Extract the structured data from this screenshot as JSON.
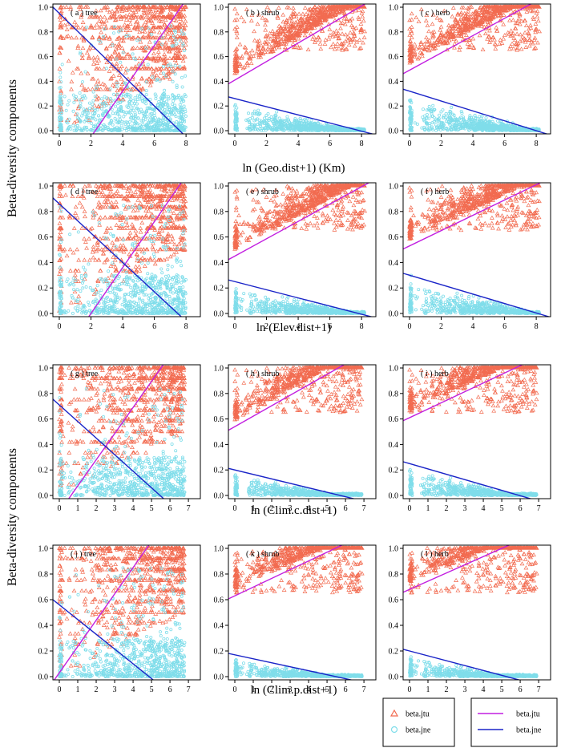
{
  "figure": {
    "ylabel_upper": "Beta-diversity components",
    "ylabel_lower": "Beta-diversity components",
    "colors": {
      "jtu": "#F26B50",
      "jne": "#7FDDEA",
      "jtu_line": "#C21FE0",
      "jne_line": "#1A24C8"
    }
  },
  "legend": {
    "points": [
      {
        "label": "beta.jtu",
        "marker": "triangle",
        "color": "#F26B50"
      },
      {
        "label": "beta.jne",
        "marker": "circle",
        "color": "#7FDDEA"
      }
    ],
    "lines": [
      {
        "label": "beta.jtu",
        "color": "#C21FE0"
      },
      {
        "label": "beta.jne",
        "color": "#1A24C8"
      }
    ]
  },
  "chart_data": [
    {
      "type": "scatter",
      "row": 0,
      "col": 0,
      "title": "( a ) tree",
      "xlabel": "ln (Geo.dist+1) (Km)",
      "xlim": [
        0,
        8.5
      ],
      "ylim": [
        0,
        1
      ],
      "xticks": [
        "0",
        "2",
        "4",
        "6",
        "8"
      ],
      "yticks": [
        "0.0",
        "0.2",
        "0.4",
        "0.6",
        "0.8",
        "1.0"
      ],
      "x_data_max": 8.0,
      "jtu_line": [
        -0.42,
        0.185
      ],
      "jne_line": [
        0.95,
        -0.125
      ]
    },
    {
      "type": "scatter",
      "row": 0,
      "col": 1,
      "title": "( b ) shrub",
      "xlabel": "",
      "xlim": [
        0,
        8.5
      ],
      "ylim": [
        0,
        1
      ],
      "xticks": [
        "0",
        "2",
        "4",
        "6",
        "8"
      ],
      "yticks": [
        "0.0",
        "0.2",
        "0.4",
        "0.6",
        "0.8",
        "1.0"
      ],
      "x_data_max": 8.2,
      "jtu_line": [
        0.41,
        0.075
      ],
      "jne_line": [
        0.26,
        -0.033
      ]
    },
    {
      "type": "scatter",
      "row": 0,
      "col": 2,
      "title": "( c ) herb",
      "xlabel": "",
      "xlim": [
        0,
        8.5
      ],
      "ylim": [
        0,
        1
      ],
      "xticks": [
        "0",
        "2",
        "4",
        "6",
        "8"
      ],
      "yticks": [
        "0.0",
        "0.2",
        "0.4",
        "0.6",
        "0.8",
        "1.0"
      ],
      "x_data_max": 8.2,
      "jtu_line": [
        0.49,
        0.07
      ],
      "jne_line": [
        0.32,
        -0.04
      ]
    },
    {
      "type": "scatter",
      "row": 1,
      "col": 0,
      "title": "( d ) tree",
      "xlabel": "ln (Elev.dist+1)",
      "xlim": [
        0,
        8.5
      ],
      "ylim": [
        0,
        1
      ],
      "xticks": [
        "0",
        "2",
        "4",
        "6",
        "8"
      ],
      "yticks": [
        "0.0",
        "0.2",
        "0.4",
        "0.6",
        "0.8",
        "1.0"
      ],
      "x_data_max": 8.0,
      "jtu_line": [
        -0.36,
        0.18
      ],
      "jne_line": [
        0.86,
        -0.115
      ]
    },
    {
      "type": "scatter",
      "row": 1,
      "col": 1,
      "title": "( e ) shrub",
      "xlabel": "",
      "xlim": [
        0,
        8.5
      ],
      "ylim": [
        0,
        1
      ],
      "xticks": [
        "0",
        "2",
        "4",
        "6",
        "8"
      ],
      "yticks": [
        "0.0",
        "0.2",
        "0.4",
        "0.6",
        "0.8",
        "1.0"
      ],
      "x_data_max": 8.2,
      "jtu_line": [
        0.45,
        0.068
      ],
      "jne_line": [
        0.25,
        -0.032
      ]
    },
    {
      "type": "scatter",
      "row": 1,
      "col": 2,
      "title": "( f ) herb",
      "xlabel": "",
      "xlim": [
        0,
        8.5
      ],
      "ylim": [
        0,
        1
      ],
      "xticks": [
        "0",
        "2",
        "4",
        "6",
        "8"
      ],
      "yticks": [
        "0.0",
        "0.2",
        "0.4",
        "0.6",
        "0.8",
        "1.0"
      ],
      "x_data_max": 8.2,
      "jtu_line": [
        0.53,
        0.06
      ],
      "jne_line": [
        0.3,
        -0.037
      ]
    },
    {
      "type": "scatter",
      "row": 2,
      "col": 0,
      "title": "( g ) tree",
      "xlabel": "ln (Clim.c.dist+1)",
      "xlim": [
        0,
        7.3
      ],
      "ylim": [
        0,
        1
      ],
      "xticks": [
        "0",
        "1",
        "2",
        "3",
        "4",
        "5",
        "6",
        "7"
      ],
      "yticks": [
        "0.0",
        "0.2",
        "0.4",
        "0.6",
        "0.8",
        "1.0"
      ],
      "x_data_max": 6.8,
      "jtu_line": [
        -0.13,
        0.205
      ],
      "jne_line": [
        0.71,
        -0.13
      ]
    },
    {
      "type": "scatter",
      "row": 2,
      "col": 1,
      "title": "( h ) shrub",
      "xlabel": "",
      "xlim": [
        0,
        7.3
      ],
      "ylim": [
        0,
        1
      ],
      "xticks": [
        "0",
        "1",
        "2",
        "3",
        "4",
        "5",
        "6",
        "7"
      ],
      "yticks": [
        "0.0",
        "0.2",
        "0.4",
        "0.6",
        "0.8",
        "1.0"
      ],
      "x_data_max": 6.9,
      "jtu_line": [
        0.54,
        0.082
      ],
      "jne_line": [
        0.2,
        -0.035
      ]
    },
    {
      "type": "scatter",
      "row": 2,
      "col": 2,
      "title": "( i ) herb",
      "xlabel": "",
      "xlim": [
        0,
        7.3
      ],
      "ylim": [
        0,
        1
      ],
      "xticks": [
        "0",
        "1",
        "2",
        "3",
        "4",
        "5",
        "6",
        "7"
      ],
      "yticks": [
        "0.0",
        "0.2",
        "0.4",
        "0.6",
        "0.8",
        "1.0"
      ],
      "x_data_max": 6.9,
      "jtu_line": [
        0.61,
        0.068
      ],
      "jne_line": [
        0.25,
        -0.042
      ]
    },
    {
      "type": "scatter",
      "row": 3,
      "col": 0,
      "title": "( j ) tree",
      "xlabel": "ln (Clim.p.dist+1)",
      "xlim": [
        0,
        7.3
      ],
      "ylim": [
        0,
        1
      ],
      "xticks": [
        "0",
        "1",
        "2",
        "3",
        "4",
        "5",
        "6",
        "7"
      ],
      "yticks": [
        "0.0",
        "0.2",
        "0.4",
        "0.6",
        "0.8",
        "1.0"
      ],
      "x_data_max": 6.8,
      "jtu_line": [
        0.03,
        0.205
      ],
      "jne_line": [
        0.56,
        -0.115
      ]
    },
    {
      "type": "scatter",
      "row": 3,
      "col": 1,
      "title": "( k ) shrub",
      "xlabel": "",
      "xlim": [
        0,
        7.3
      ],
      "ylim": [
        0,
        1
      ],
      "xticks": [
        "0",
        "1",
        "2",
        "3",
        "4",
        "5",
        "6",
        "7"
      ],
      "yticks": [
        "0.0",
        "0.2",
        "0.4",
        "0.6",
        "0.8",
        "1.0"
      ],
      "x_data_max": 6.9,
      "jtu_line": [
        0.63,
        0.068
      ],
      "jne_line": [
        0.17,
        -0.031
      ]
    },
    {
      "type": "scatter",
      "row": 3,
      "col": 2,
      "title": "( l ) herb",
      "xlabel": "",
      "xlim": [
        0,
        7.3
      ],
      "ylim": [
        0,
        1
      ],
      "xticks": [
        "0",
        "1",
        "2",
        "3",
        "4",
        "5",
        "6",
        "7"
      ],
      "yticks": [
        "0.0",
        "0.2",
        "0.4",
        "0.6",
        "0.8",
        "1.0"
      ],
      "x_data_max": 6.9,
      "jtu_line": [
        0.68,
        0.064
      ],
      "jne_line": [
        0.2,
        -0.038
      ]
    }
  ]
}
